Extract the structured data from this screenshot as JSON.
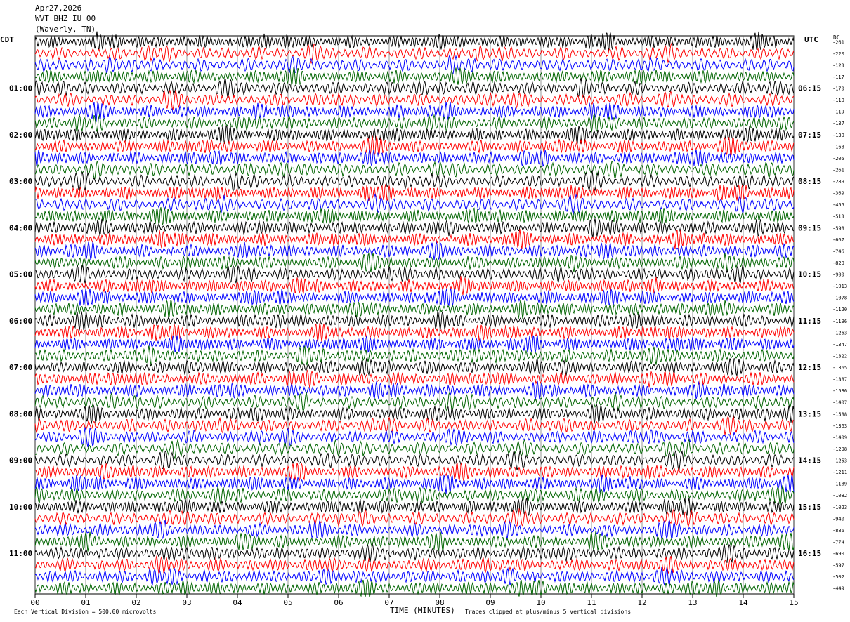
{
  "header": {
    "date": "Apr27,2026",
    "station": "WVT BHZ IU 00",
    "location": "(Waverly, TN)"
  },
  "left_axis_label": "CDT",
  "right_axis_label": "UTC",
  "dc_label": "DC",
  "footer": {
    "scale_note": "Each Vertical Division =  500.00 microvolts",
    "xlabel": "TIME (MINUTES)",
    "clip_note": "Traces clipped at plus/minus 5 vertical divisions"
  },
  "colors": {
    "trace_cycle": [
      "#000000",
      "#ff0000",
      "#0000ff",
      "#006400"
    ],
    "grid": "#000000",
    "background": "#ffffff"
  },
  "chart_data": {
    "type": "line",
    "subtype": "helicorder",
    "title": "Apr27,2026 WVT BHZ IU 00 (Waverly, TN)",
    "xlabel": "TIME (MINUTES)",
    "xlim": [
      0,
      15
    ],
    "x_ticks": [
      "00",
      "01",
      "02",
      "03",
      "04",
      "05",
      "06",
      "07",
      "08",
      "09",
      "10",
      "11",
      "12",
      "13",
      "14",
      "15"
    ],
    "minutes_per_trace": 15,
    "trace_count": 48,
    "left_time_labels": [
      {
        "trace": 4,
        "label": "01:00"
      },
      {
        "trace": 8,
        "label": "02:00"
      },
      {
        "trace": 12,
        "label": "03:00"
      },
      {
        "trace": 16,
        "label": "04:00"
      },
      {
        "trace": 20,
        "label": "05:00"
      },
      {
        "trace": 24,
        "label": "06:00"
      },
      {
        "trace": 28,
        "label": "07:00"
      },
      {
        "trace": 32,
        "label": "08:00"
      },
      {
        "trace": 36,
        "label": "09:00"
      },
      {
        "trace": 40,
        "label": "10:00"
      },
      {
        "trace": 44,
        "label": "11:00"
      }
    ],
    "right_time_labels": [
      {
        "trace": 4,
        "label": "06:15"
      },
      {
        "trace": 8,
        "label": "07:15"
      },
      {
        "trace": 12,
        "label": "08:15"
      },
      {
        "trace": 16,
        "label": "09:15"
      },
      {
        "trace": 20,
        "label": "10:15"
      },
      {
        "trace": 24,
        "label": "11:15"
      },
      {
        "trace": 28,
        "label": "12:15"
      },
      {
        "trace": 32,
        "label": "13:15"
      },
      {
        "trace": 36,
        "label": "14:15"
      },
      {
        "trace": 40,
        "label": "15:15"
      },
      {
        "trace": 44,
        "label": "16:15"
      }
    ],
    "dc_offsets": [
      "-261",
      "-220",
      "-123",
      "-117",
      "-170",
      "-110",
      "-119",
      "-137",
      "-130",
      "-168",
      "-205",
      "-261",
      "-289",
      "-369",
      "-455",
      "-513",
      "-598",
      "-667",
      "-746",
      "-820",
      "-900",
      "-1013",
      "-1078",
      "-1120",
      "-1196",
      "-1263",
      "-1347",
      "-1322",
      "-1365",
      "-1387",
      "-1536",
      "-1407",
      "-1588",
      "-1363",
      "-1409",
      "-1298",
      "-1253",
      "-1211",
      "-1189",
      "-1082",
      "-1023",
      "-940",
      "-886",
      "-774",
      "-690",
      "-597",
      "-502",
      "-449"
    ],
    "scale_microvolts_per_division": 500.0,
    "clip_divisions": 5
  }
}
